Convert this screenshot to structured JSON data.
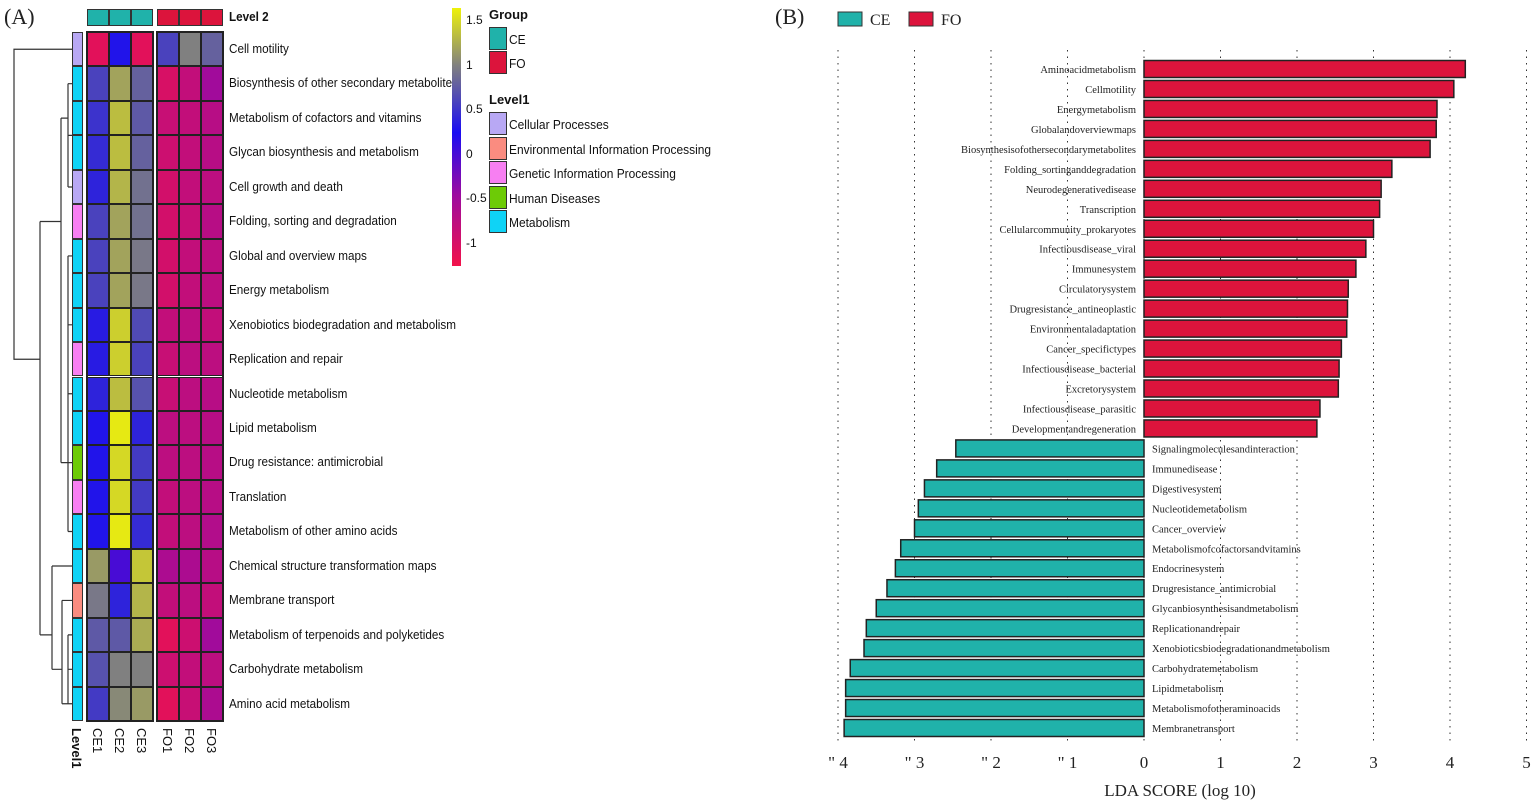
{
  "panel_a_label": "(A)",
  "panel_b_label": "(B)",
  "chart_data": [
    {
      "type": "heatmap",
      "title": "Level 2",
      "columns": [
        "CE1",
        "CE2",
        "CE3",
        "FO1",
        "FO2",
        "FO3"
      ],
      "column_groups": [
        "CE",
        "CE",
        "CE",
        "FO",
        "FO",
        "FO"
      ],
      "level1_axis_label": "Level1",
      "rows": [
        {
          "name": "Cell motility",
          "level1": "Cellular Processes",
          "values": [
            -1.1,
            0.3,
            -1.1,
            0.6,
            1.0,
            0.8
          ]
        },
        {
          "name": "Biosynthesis of other secondary metabolites",
          "level1": "Metabolism",
          "values": [
            0.6,
            1.2,
            0.8,
            -1.0,
            -0.8,
            -0.5
          ]
        },
        {
          "name": "Metabolism of cofactors and vitamins",
          "level1": "Metabolism",
          "values": [
            0.5,
            1.35,
            0.75,
            -0.85,
            -0.8,
            -0.7
          ]
        },
        {
          "name": "Glycan biosynthesis and metabolism",
          "level1": "Metabolism",
          "values": [
            0.45,
            1.35,
            0.8,
            -0.9,
            -0.8,
            -0.7
          ]
        },
        {
          "name": "Cell growth and death",
          "level1": "Cellular Processes",
          "values": [
            0.4,
            1.3,
            0.9,
            -0.95,
            -0.8,
            -0.75
          ]
        },
        {
          "name": "Folding, sorting and degradation",
          "level1": "Genetic Information Processing",
          "values": [
            0.6,
            1.2,
            0.9,
            -0.95,
            -0.85,
            -0.7
          ]
        },
        {
          "name": "Global and overview maps",
          "level1": "Metabolism",
          "values": [
            0.6,
            1.2,
            0.95,
            -0.95,
            -0.8,
            -0.75
          ]
        },
        {
          "name": "Energy metabolism",
          "level1": "Metabolism",
          "values": [
            0.6,
            1.2,
            0.95,
            -0.95,
            -0.8,
            -0.75
          ]
        },
        {
          "name": "Xenobiotics biodegradation and metabolism",
          "level1": "Metabolism",
          "values": [
            0.35,
            1.45,
            0.65,
            -0.8,
            -0.75,
            -0.8
          ]
        },
        {
          "name": "Replication and repair",
          "level1": "Genetic Information Processing",
          "values": [
            0.35,
            1.45,
            0.6,
            -0.85,
            -0.75,
            -0.75
          ]
        },
        {
          "name": "Nucleotide metabolism",
          "level1": "Metabolism",
          "values": [
            0.4,
            1.35,
            0.7,
            -0.85,
            -0.75,
            -0.7
          ]
        },
        {
          "name": "Lipid metabolism",
          "level1": "Metabolism",
          "values": [
            0.3,
            1.6,
            0.4,
            -0.75,
            -0.75,
            -0.7
          ]
        },
        {
          "name": "Drug resistance: antimicrobial",
          "level1": "Human Diseases",
          "values": [
            0.3,
            1.5,
            0.55,
            -0.75,
            -0.75,
            -0.7
          ]
        },
        {
          "name": "Translation",
          "level1": "Genetic Information Processing",
          "values": [
            0.3,
            1.5,
            0.55,
            -0.8,
            -0.75,
            -0.7
          ]
        },
        {
          "name": "Metabolism of other amino acids",
          "level1": "Metabolism",
          "values": [
            0.3,
            1.6,
            0.45,
            -0.8,
            -0.75,
            -0.65
          ]
        },
        {
          "name": "Chemical structure transformation maps",
          "level1": "Metabolism",
          "values": [
            1.15,
            0.0,
            1.4,
            -0.6,
            -0.6,
            -0.7
          ]
        },
        {
          "name": "Membrane transport",
          "level1": "Environmental Information Processing",
          "values": [
            0.95,
            0.4,
            1.3,
            -0.8,
            -0.75,
            -0.8
          ]
        },
        {
          "name": "Metabolism of terpenoids and polyketides",
          "level1": "Metabolism",
          "values": [
            0.75,
            0.75,
            1.25,
            -1.1,
            -0.9,
            -0.5
          ]
        },
        {
          "name": "Carbohydrate metabolism",
          "level1": "Metabolism",
          "values": [
            0.7,
            1.0,
            1.0,
            -0.9,
            -0.8,
            -0.75
          ]
        },
        {
          "name": "Amino acid metabolism",
          "level1": "Metabolism",
          "values": [
            0.55,
            1.05,
            1.15,
            -1.1,
            -0.85,
            -0.6
          ]
        }
      ],
      "colorbar": {
        "ticks": [
          "1.5",
          "1",
          "0.5",
          "0",
          "-0.5",
          "-1"
        ],
        "tick_values": [
          1.5,
          1,
          0.5,
          0,
          -0.5,
          -1
        ],
        "range": [
          -1.25,
          1.65
        ],
        "stops": [
          {
            "v": -1.25,
            "c": "#f2124a"
          },
          {
            "v": -0.45,
            "c": "#9c0ba0"
          },
          {
            "v": 0.25,
            "c": "#1a0cf2"
          },
          {
            "v": 1.0,
            "c": "#808080"
          },
          {
            "v": 1.65,
            "c": "#eef20a"
          }
        ]
      },
      "legend": {
        "group_title": "Group",
        "groups": [
          {
            "label": "CE",
            "color": "#20b2aa"
          },
          {
            "label": "FO",
            "color": "#dc143c"
          }
        ],
        "level1_title": "Level1",
        "level1": [
          {
            "label": "Cellular Processes",
            "color": "#b8a8f4"
          },
          {
            "label": "Environmental Information Processing",
            "color": "#fa8c80"
          },
          {
            "label": "Genetic Information Processing",
            "color": "#f77ff2"
          },
          {
            "label": "Human Diseases",
            "color": "#6dcb06"
          },
          {
            "label": "Metabolism",
            "color": "#0fd3f6"
          }
        ]
      }
    },
    {
      "type": "bar",
      "orientation": "horizontal",
      "xlabel": "LDA SCORE (log 10)",
      "xlim": [
        -4,
        5
      ],
      "x_ticks": [
        "\" 4",
        "\" 3",
        "\" 2",
        "\" 1",
        "0",
        "1",
        "2",
        "3",
        "4",
        "5"
      ],
      "x_tick_values": [
        -4,
        -3,
        -2,
        -1,
        0,
        1,
        2,
        3,
        4,
        5
      ],
      "grid": true,
      "legend_position": "top-left",
      "series": [
        {
          "name": "CE",
          "color": "#20b2aa"
        },
        {
          "name": "FO",
          "color": "#dc143c"
        }
      ],
      "bars": [
        {
          "label": "Aminoacidmetabolism",
          "group": "FO",
          "value": 4.2
        },
        {
          "label": "Cellmotility",
          "group": "FO",
          "value": 4.05
        },
        {
          "label": "Energymetabolism",
          "group": "FO",
          "value": 3.83
        },
        {
          "label": "Globalandoverviewmaps",
          "group": "FO",
          "value": 3.82
        },
        {
          "label": "Biosynthesisofothersecondarymetabolites",
          "group": "FO",
          "value": 3.74
        },
        {
          "label": "Folding_sortinganddegradation",
          "group": "FO",
          "value": 3.24
        },
        {
          "label": "Neurodegenerativedisease",
          "group": "FO",
          "value": 3.1
        },
        {
          "label": "Transcription",
          "group": "FO",
          "value": 3.08
        },
        {
          "label": "Cellularcommunity_prokaryotes",
          "group": "FO",
          "value": 3.0
        },
        {
          "label": "Infectiousdisease_viral",
          "group": "FO",
          "value": 2.9
        },
        {
          "label": "Immunesystem",
          "group": "FO",
          "value": 2.77
        },
        {
          "label": "Circulatorysystem",
          "group": "FO",
          "value": 2.67
        },
        {
          "label": "Drugresistance_antineoplastic",
          "group": "FO",
          "value": 2.66
        },
        {
          "label": "Environmentaladaptation",
          "group": "FO",
          "value": 2.65
        },
        {
          "label": "Cancer_specifictypes",
          "group": "FO",
          "value": 2.58
        },
        {
          "label": "Infectiousdisease_bacterial",
          "group": "FO",
          "value": 2.55
        },
        {
          "label": "Excretorysystem",
          "group": "FO",
          "value": 2.54
        },
        {
          "label": "Infectiousdisease_parasitic",
          "group": "FO",
          "value": 2.3
        },
        {
          "label": "Developmentandregeneration",
          "group": "FO",
          "value": 2.26
        },
        {
          "label": "Signalingmoleculesandinteraction",
          "group": "CE",
          "value": -2.46
        },
        {
          "label": "Immunedisease",
          "group": "CE",
          "value": -2.71
        },
        {
          "label": "Digestivesystem",
          "group": "CE",
          "value": -2.87
        },
        {
          "label": "Nucleotidemetabolism",
          "group": "CE",
          "value": -2.95
        },
        {
          "label": "Cancer_overview",
          "group": "CE",
          "value": -3.0
        },
        {
          "label": "Metabolismofcofactorsandvitamins",
          "group": "CE",
          "value": -3.18
        },
        {
          "label": "Endocrinesystem",
          "group": "CE",
          "value": -3.25
        },
        {
          "label": "Drugresistance_antimicrobial",
          "group": "CE",
          "value": -3.36
        },
        {
          "label": "Glycanbiosynthesisandmetabolism",
          "group": "CE",
          "value": -3.5
        },
        {
          "label": "Replicationandrepair",
          "group": "CE",
          "value": -3.63
        },
        {
          "label": "Xenobioticsbiodegradationandmetabolism",
          "group": "CE",
          "value": -3.66
        },
        {
          "label": "Carbohydratemetabolism",
          "group": "CE",
          "value": -3.84
        },
        {
          "label": "Lipidmetabolism",
          "group": "CE",
          "value": -3.9
        },
        {
          "label": "Metabolismofotheraminoacids",
          "group": "CE",
          "value": -3.9
        },
        {
          "label": "Membranetransport",
          "group": "CE",
          "value": -3.92
        }
      ]
    }
  ]
}
